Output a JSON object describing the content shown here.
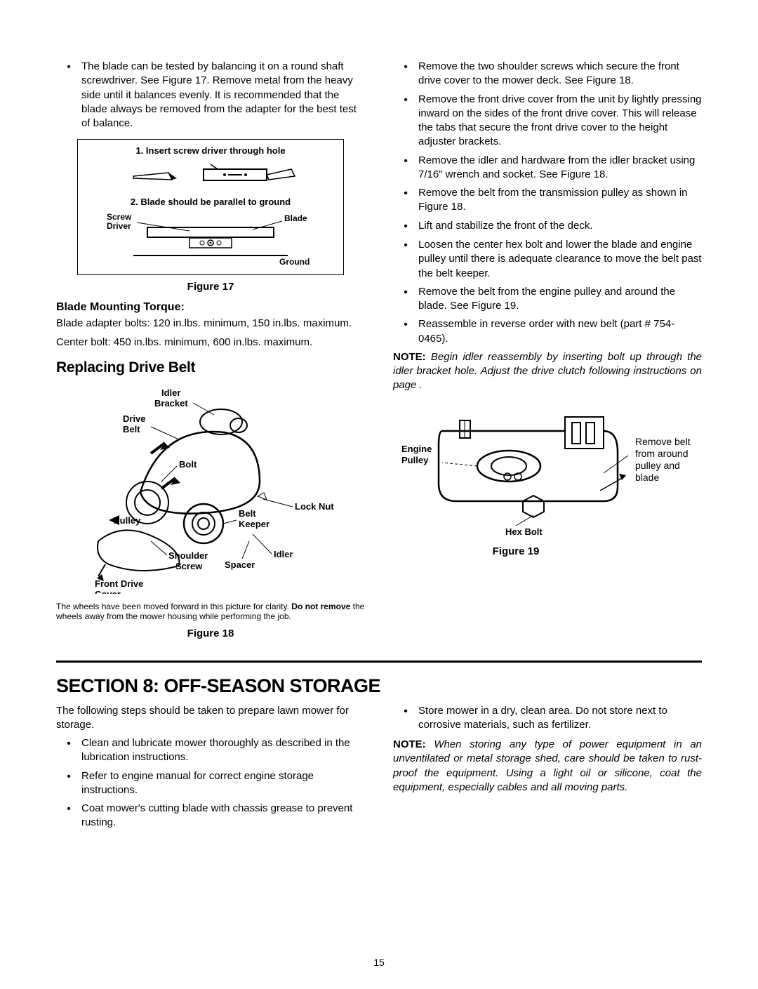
{
  "col1": {
    "intro_bullet": "The blade can be tested by balancing it on a round shaft screwdriver. See Figure 17. Remove metal from the heavy side until it balances evenly. It is recommended that the blade always be removed from the adapter for the best test of balance.",
    "fig17": {
      "caption": "Figure 17",
      "line1": "1. Insert screw driver through hole",
      "line2": "2. Blade should be parallel to ground",
      "screw": "Screw Driver",
      "blade": "Blade",
      "ground": "Ground"
    },
    "torque_head": "Blade Mounting Torque:",
    "torque1": "Blade adapter bolts: 120 in.lbs. minimum, 150 in.lbs. maximum.",
    "torque2": "Center bolt: 450 in.lbs. minimum, 600 in.lbs. maximum.",
    "replace_head": "Replacing Drive Belt",
    "fig18": {
      "idler_bracket": "Idler Bracket",
      "drive_belt": "Drive Belt",
      "bolt": "Bolt",
      "pulley": "Pulley",
      "belt_keeper": "Belt Keeper",
      "lock_nut": "Lock Nut",
      "shoulder_screw": "Shoulder Screw",
      "spacer": "Spacer",
      "idler": "Idler",
      "front_drive_cover": "Front Drive Cover",
      "note": "The wheels have been moved forward in this picture for clarity. Do not remove the wheels away from the mower housing while performing the job.",
      "caption": "Figure 18"
    }
  },
  "col2": {
    "bullets": [
      "Remove the two shoulder screws which secure the front drive cover to the mower deck. See Figure 18.",
      "Remove the front drive cover from the unit by lightly pressing inward on the sides of the front drive cover. This will release the tabs that secure the front drive cover to the height adjuster brackets.",
      "Remove the idler and hardware from the idler bracket using 7/16\" wrench and socket. See Figure 18.",
      "Remove the belt from the transmission pulley as shown in  Figure 18.",
      "Lift and stabilize the front of the deck.",
      "Loosen the center hex bolt and lower the blade and engine pulley until there is adequate clearance to move the belt past the belt keeper.",
      "Remove the belt from the engine pulley and around the blade. See Figure 19.",
      "Reassemble in reverse order with new belt (part # 754-0465)."
    ],
    "note_bold": "NOTE:",
    "note_text": "Begin idler reassembly by inserting bolt up through the idler bracket hole. Adjust the drive clutch following instructions on page .",
    "fig19": {
      "engine_pulley": "Engine Pulley",
      "hex_bolt": "Hex Bolt",
      "side_text": "Remove belt from around pulley and blade",
      "caption": "Figure 19"
    }
  },
  "section8": {
    "title": "SECTION 8:  OFF-SEASON STORAGE",
    "intro": "The following steps should be taken to prepare lawn mower for storage.",
    "left_bullets": [
      "Clean and lubricate mower thoroughly as described in the lubrication instructions.",
      "Refer to engine manual for correct engine storage instructions.",
      "Coat mower's cutting blade with chassis grease to prevent rusting."
    ],
    "right_bullet": "Store mower in a dry, clean area. Do not store next to corrosive materials, such as fertilizer.",
    "note_bold": "NOTE:",
    "note_text": "When storing any type of power equipment in an unventilated or metal storage shed, care should be taken to rust-proof the equipment. Using a light oil or silicone, coat the equipment, especially cables and all moving parts."
  },
  "page_number": "15",
  "colors": {
    "text": "#000000",
    "bg": "#ffffff"
  }
}
